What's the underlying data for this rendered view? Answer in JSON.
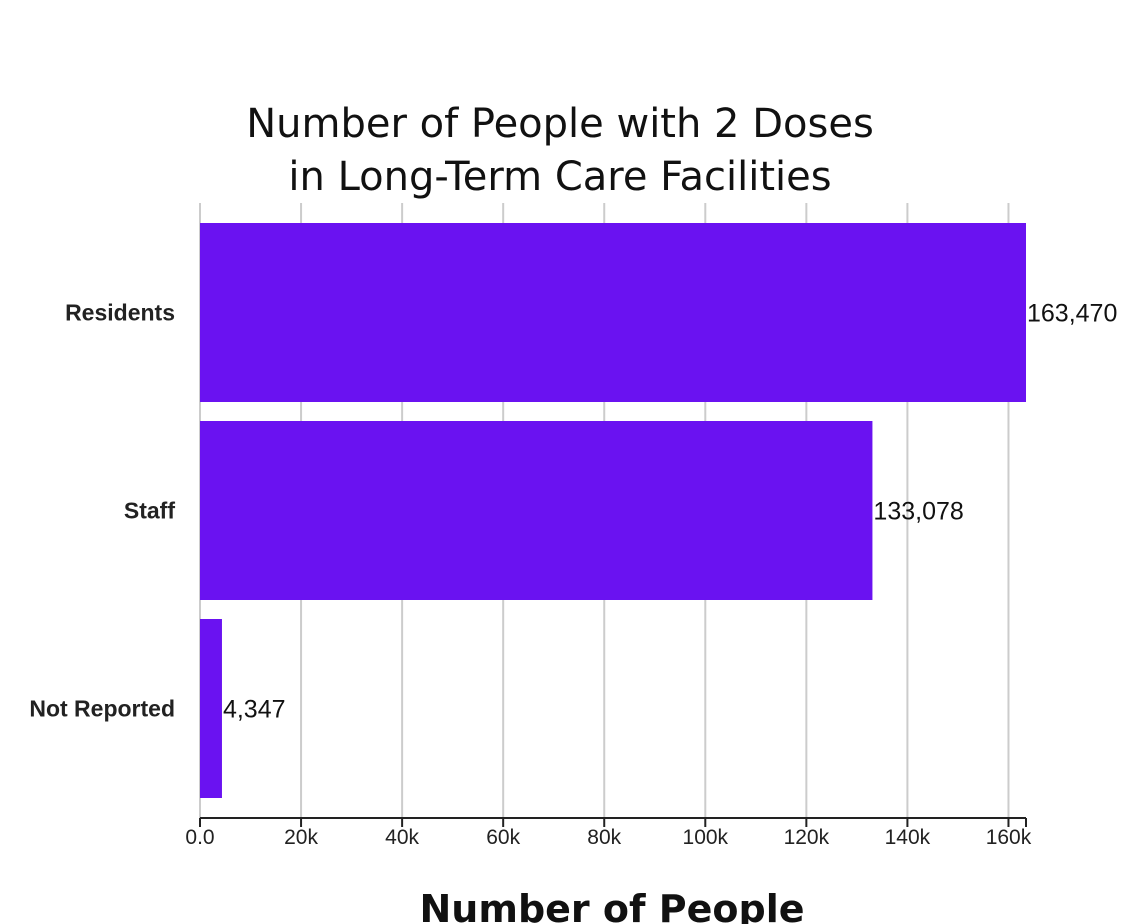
{
  "chart_data": {
    "type": "bar",
    "orientation": "horizontal",
    "title": [
      "Number of People with 2 Doses",
      "in Long-Term Care Facilities"
    ],
    "xlabel": "Number of People",
    "ylabel": "",
    "categories": [
      "Residents",
      "Staff",
      "Not Reported"
    ],
    "values": [
      163470,
      133078,
      4347
    ],
    "data_labels": [
      "163,470",
      "133,078",
      "4,347"
    ],
    "xlim": [
      0,
      163470
    ],
    "xticks": [
      0,
      20000,
      40000,
      60000,
      80000,
      100000,
      120000,
      140000,
      160000
    ],
    "xtick_labels": [
      "0.0",
      "20k",
      "40k",
      "60k",
      "80k",
      "100k",
      "120k",
      "140k",
      "160k"
    ],
    "grid": true,
    "legend": "none",
    "colors": {
      "bar": "#6a12f1",
      "grid": "#cccccc",
      "axis": "#222222"
    }
  }
}
